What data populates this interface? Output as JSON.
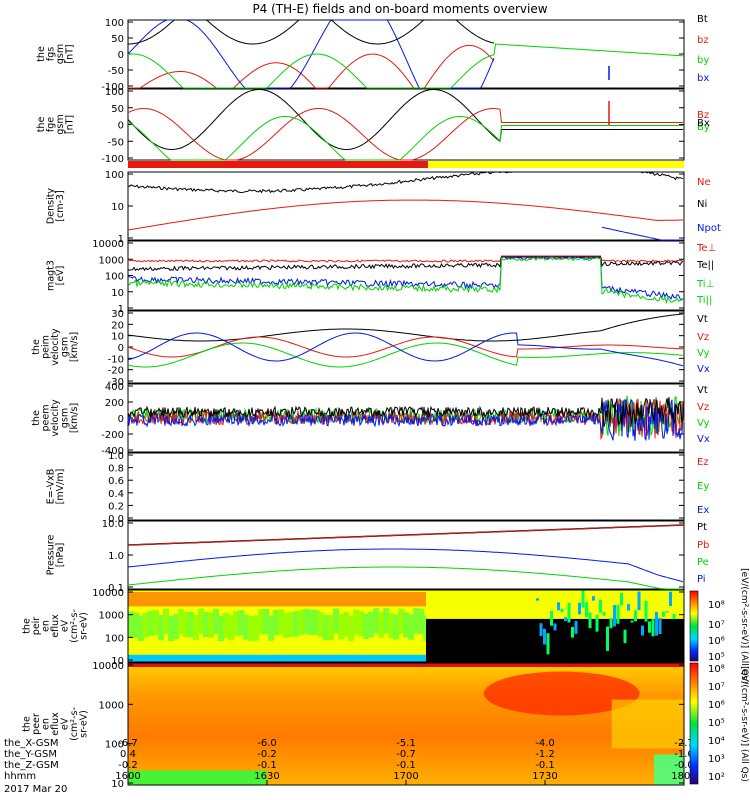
{
  "title": "P4 (TH-E) fields and on-board moments overview",
  "date": "2017 Mar 20",
  "colors": {
    "black": "#000000",
    "red": "#e8190f",
    "green": "#00d400",
    "blue": "#0018e8",
    "yellow": "#ffff00"
  },
  "mode_bar": {
    "segments": [
      {
        "from": "1600",
        "to": "1705",
        "color": "red"
      },
      {
        "from": "1705",
        "to": "1800",
        "color": "yellow"
      }
    ]
  },
  "x_axis": {
    "rows": [
      {
        "label": "the_X-GSM",
        "values": [
          "-6.7",
          "-6.0",
          "-5.1",
          "-4.0",
          "-2.7"
        ]
      },
      {
        "label": "the_Y-GSM",
        "values": [
          "0.4",
          "-0.2",
          "-0.7",
          "-1.2",
          "-1.6"
        ]
      },
      {
        "label": "the_Z-GSM",
        "values": [
          "-0.2",
          "-0.1",
          "-0.1",
          "-0.1",
          "-0.0"
        ]
      },
      {
        "label": "hhmm",
        "values": [
          "1600",
          "1630",
          "1700",
          "1730",
          "1800"
        ]
      }
    ]
  },
  "colorbar": {
    "top_label": "[eV/(cm²-s-sr-eV)] (All Qs)",
    "bottom_label": "[eV/(cm²-s-sr-eV)] (All Qs)",
    "top_ticks": [
      "10⁸",
      "10⁷",
      "10⁶",
      "10⁵"
    ],
    "bottom_ticks": [
      "10⁸",
      "10⁷",
      "10⁶",
      "10⁵",
      "10⁴",
      "10³",
      "10²"
    ]
  },
  "chart_data": [
    {
      "type": "line",
      "panel": "fgs_gsm",
      "ylabel": [
        "the",
        "fgs",
        "gsm",
        "[nT]"
      ],
      "yticks": [
        "100",
        "50",
        "0",
        "-50",
        "-100"
      ],
      "ylim": [
        -100,
        100
      ],
      "series": [
        {
          "name": "Bt"
        },
        {
          "name": "bz"
        },
        {
          "name": "by"
        },
        {
          "name": "bx"
        }
      ]
    },
    {
      "type": "line",
      "panel": "fge_gsm",
      "ylabel": [
        "the",
        "fge",
        "gsm",
        "[nT]"
      ],
      "yticks": [
        "100",
        "50",
        "0",
        "-50",
        "-100"
      ],
      "ylim": [
        -125,
        125
      ],
      "series": [
        {
          "name": "Bz"
        },
        {
          "name": "By"
        },
        {
          "name": "Bx"
        }
      ]
    },
    {
      "type": "line",
      "panel": "density",
      "ylabel": [
        "Density",
        "[cm-3]"
      ],
      "yticks": [
        "100",
        "10",
        "1"
      ],
      "yscale": "log",
      "series": [
        {
          "name": "Ne"
        },
        {
          "name": "Ni"
        },
        {
          "name": "Npot"
        }
      ]
    },
    {
      "type": "line",
      "panel": "temperature",
      "ylabel": [
        "magt3",
        "[eV]"
      ],
      "yticks": [
        "10000",
        "1000",
        "100",
        "10",
        "1"
      ],
      "yscale": "log",
      "series": [
        {
          "name": "Te⊥"
        },
        {
          "name": "Te||"
        },
        {
          "name": "Ti⊥"
        },
        {
          "name": "Ti||"
        }
      ]
    },
    {
      "type": "line",
      "panel": "peim_velocity",
      "ylabel": [
        "the",
        "peim",
        "velocity",
        "gsm",
        "[km/s]"
      ],
      "yticks": [
        "30",
        "20",
        "10",
        "0",
        "-10",
        "-20",
        "-30"
      ],
      "ylim": [
        -30,
        30
      ],
      "series": [
        {
          "name": "Vt"
        },
        {
          "name": "Vz"
        },
        {
          "name": "Vy"
        },
        {
          "name": "Vx"
        }
      ]
    },
    {
      "type": "line",
      "panel": "peem_velocity",
      "ylabel": [
        "the",
        "peem",
        "velocity",
        "gsm",
        "[km/s]"
      ],
      "yticks": [
        "400",
        "200",
        "0",
        "-200",
        "-400"
      ],
      "ylim": [
        -400,
        400
      ],
      "series": [
        {
          "name": "Vt"
        },
        {
          "name": "Vz"
        },
        {
          "name": "Vy"
        },
        {
          "name": "Vx"
        }
      ]
    },
    {
      "type": "line",
      "panel": "efield",
      "ylabel": [
        "E=-VxB",
        "[mV/m]"
      ],
      "yticks": [
        "1.0",
        "0.8",
        "0.6",
        "0.4",
        "0.2",
        "0.0"
      ],
      "ylim": [
        0,
        1
      ],
      "series": [
        {
          "name": "Ez"
        },
        {
          "name": "Ey"
        },
        {
          "name": "Ex"
        }
      ]
    },
    {
      "type": "line",
      "panel": "pressure",
      "ylabel": [
        "Pressure",
        "[nPa]"
      ],
      "yticks": [
        "10.0",
        "1.0",
        "0.1"
      ],
      "yscale": "log",
      "series": [
        {
          "name": "Pt"
        },
        {
          "name": "Pb"
        },
        {
          "name": "Pe"
        },
        {
          "name": "Pi"
        }
      ]
    },
    {
      "type": "heatmap",
      "panel": "peir_eflux",
      "ylabel": [
        "the",
        "peir",
        "en",
        "eflux",
        "eV",
        "(cm²-s-",
        "sr-eV)"
      ],
      "yticks": [
        "10000",
        "1000",
        "100",
        "10"
      ],
      "yscale": "log"
    },
    {
      "type": "heatmap",
      "panel": "peer_eflux",
      "ylabel": [
        "the",
        "peer",
        "en",
        "eflux",
        "eV",
        "(cm²-s-",
        "sr-eV)"
      ],
      "yticks": [
        "10000",
        "1000",
        "100",
        "10"
      ],
      "yscale": "log"
    }
  ]
}
